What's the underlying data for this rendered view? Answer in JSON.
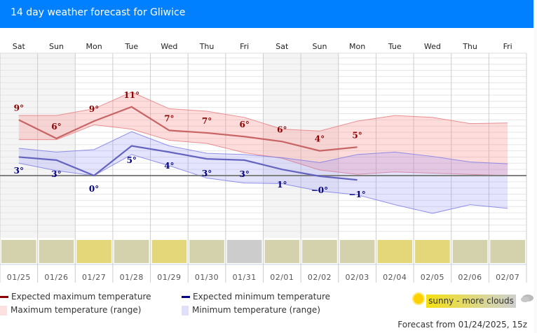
{
  "header": {
    "title": "14 day weather forecast for Gliwice"
  },
  "chart_data": {
    "type": "line",
    "title": "14 day weather forecast for Gliwice",
    "unit": "°",
    "ylim": [
      -9,
      20
    ],
    "grid": true,
    "days": [
      "Sat",
      "Sun",
      "Mon",
      "Tue",
      "Wed",
      "Thu",
      "Fri",
      "Sat",
      "Sun",
      "Mon",
      "Tue",
      "Wed",
      "Thu",
      "Fri"
    ],
    "dates": [
      "01/25",
      "01/26",
      "01/27",
      "01/28",
      "01/29",
      "01/30",
      "01/31",
      "02/01",
      "02/02",
      "02/03",
      "02/04",
      "02/05",
      "02/06",
      "02/07"
    ],
    "weekend": [
      true,
      true,
      false,
      false,
      false,
      false,
      false,
      true,
      true,
      false,
      false,
      false,
      false,
      false
    ],
    "series": [
      {
        "name": "Expected maximum temperature",
        "color": "#c0504d",
        "values": [
          9.0,
          6.0,
          8.8,
          11.1,
          7.3,
          6.9,
          6.3,
          5.5,
          4.0,
          4.6,
          null,
          null,
          null,
          null
        ],
        "labels": [
          "9°",
          "6°",
          "9°",
          "11°",
          "7°",
          "7°",
          "6°",
          "6°",
          "4°",
          "5°",
          "",
          "",
          "",
          ""
        ]
      },
      {
        "name": "Expected minimum temperature",
        "color": "#5555bb",
        "values": [
          3.0,
          2.5,
          0.0,
          4.8,
          3.8,
          2.7,
          2.5,
          1.0,
          -0.1,
          -0.7,
          null,
          null,
          null,
          null
        ],
        "labels": [
          "3°",
          "3°",
          "0°",
          "5°",
          "4°",
          "3°",
          "3°",
          "1°",
          "−0°",
          "−1°",
          "",
          "",
          "",
          ""
        ]
      }
    ],
    "ranges": [
      {
        "name": "Maximum temperature (range)",
        "color": "#ffb0b0",
        "upper": [
          9.7,
          9.7,
          10.8,
          13.5,
          10.8,
          10.4,
          9.4,
          7.5,
          7.2,
          8.8,
          9.7,
          9.4,
          8.4,
          8.5
        ],
        "lower": [
          5.8,
          5.8,
          8.2,
          7.5,
          5.7,
          5.2,
          3.7,
          2.8,
          0.9,
          0.2,
          0.6,
          0.4,
          0.2,
          0.0
        ]
      },
      {
        "name": "Minimum temperature (range)",
        "color": "#b0b0ff",
        "upper": [
          4.4,
          3.8,
          4.2,
          7.1,
          4.8,
          3.6,
          3.4,
          2.9,
          2.1,
          3.4,
          3.8,
          3.1,
          2.2,
          1.9
        ],
        "lower": [
          2.0,
          0.8,
          0.0,
          3.4,
          1.6,
          -0.4,
          -1.2,
          -1.3,
          -2.5,
          -3.1,
          -4.7,
          -6.1,
          -4.7,
          -5.3
        ]
      }
    ],
    "conditions": [
      "sunny - more clouds",
      "sunny - more clouds",
      "sunny",
      "sunny - more clouds",
      "sunny",
      "sunny - more clouds",
      "cloudy",
      "sunny - more clouds",
      "sunny - more clouds",
      "sunny - more clouds",
      "sunny",
      "sunny",
      "sunny - more clouds",
      "sunny - more clouds"
    ],
    "condition_colors": {
      "sunny": "#e3d77a",
      "sunny - more clouds": "#d4d2ad",
      "cloudy": "#cccccc"
    }
  },
  "legend": {
    "max_expected": "Expected maximum temperature",
    "max_range": "Maximum temperature (range)",
    "min_expected": "Expected minimum temperature",
    "min_range": "Minimum temperature (range)",
    "max_line_color": "#8b0000",
    "min_line_color": "#000080"
  },
  "condition_legend": {
    "label": "sunny - more clouds",
    "sun_icon": "sun-icon",
    "cloud_icon": "cloud-icon"
  },
  "footer": {
    "forecast_from": "Forecast from 01/24/2025, 15z"
  }
}
